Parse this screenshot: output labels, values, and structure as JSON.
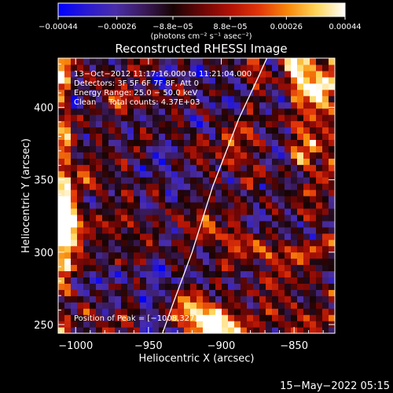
{
  "chart_data": {
    "type": "heatmap",
    "title": "Reconstructed RHESSI Image",
    "xlabel": "Heliocentric X (arcsec)",
    "ylabel": "Heliocentric Y (arcsec)",
    "xlim": [
      -1012,
      -822
    ],
    "ylim": [
      244,
      434
    ],
    "x_ticks": [
      {
        "value": -1000,
        "label": "−1000"
      },
      {
        "value": -950,
        "label": "−950"
      },
      {
        "value": -900,
        "label": "−900"
      },
      {
        "value": -850,
        "label": "−850"
      }
    ],
    "y_ticks": [
      {
        "value": 250,
        "label": "250"
      },
      {
        "value": 300,
        "label": "300"
      },
      {
        "value": 350,
        "label": "350"
      },
      {
        "value": 400,
        "label": "400"
      }
    ],
    "colorbar": {
      "range": [
        -0.00044,
        0.00044
      ],
      "tick_labels": [
        "−0.00044",
        "−0.00026",
        "−8.8e−05",
        "8.8e−05",
        "0.00026",
        "0.00044"
      ],
      "units_text": "(photons cm⁻² s⁻¹ asec⁻²)",
      "colormap": [
        "#0000ff",
        "#2a1ad0",
        "#4a2ea8",
        "#3a1a5a",
        "#180404",
        "#6a0606",
        "#b01206",
        "#e2360a",
        "#f8880a",
        "#ffd65a",
        "#ffffff"
      ]
    },
    "annotations": [
      "13−Oct−2012 11:17:16.000 to 11:21:04.000",
      "Detectors: 3F 5F 6F 7F 8F, Att 0",
      "Energy Range: 25.0 − 50.0 keV",
      "Clean     Total counts: 4.37E+03"
    ],
    "peak_label": "Position of Peak = [−1008,327]",
    "limb_curve": [
      [
        -946,
        228
      ],
      [
        -934,
        262
      ],
      [
        -920,
        300
      ],
      [
        -906,
        345
      ],
      [
        -888,
        392
      ],
      [
        -875,
        420
      ],
      [
        -866,
        440
      ]
    ],
    "bright_sources": [
      {
        "x": -1010,
        "y": 330,
        "strength": 1.0
      },
      {
        "x": -1007,
        "y": 315,
        "strength": 0.75
      },
      {
        "x": -903,
        "y": 251,
        "strength": 0.8
      },
      {
        "x": -917,
        "y": 258,
        "strength": 0.55
      },
      {
        "x": -835,
        "y": 415,
        "strength": 0.6
      },
      {
        "x": -848,
        "y": 432,
        "strength": 0.5
      }
    ]
  },
  "footer": {
    "timestamp": "15−May−2022 05:15"
  }
}
